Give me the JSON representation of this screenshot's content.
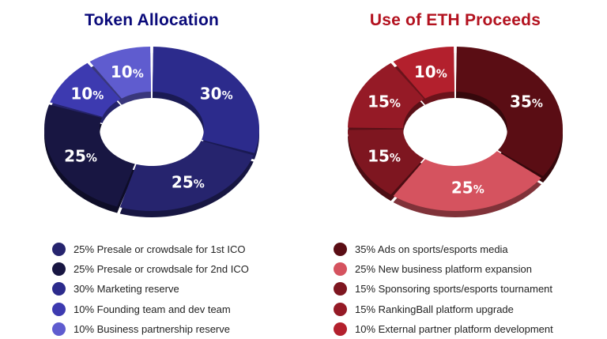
{
  "chart_data": [
    {
      "type": "pie",
      "title": "Token Allocation",
      "title_color": "#0a0a7a",
      "slices": [
        {
          "value": 30,
          "label": "30%",
          "legend": "30% Marketing reserve",
          "color": "#2c2b8c"
        },
        {
          "value": 25,
          "label": "25%",
          "legend": "25% Presale or crowdsale for 1st ICO",
          "color": "#26246e"
        },
        {
          "value": 25,
          "label": "25%",
          "legend": "25% Presale or crowdsale for 2nd ICO",
          "color": "#181642"
        },
        {
          "value": 10,
          "label": "10%",
          "legend": "10% Founding team and dev team",
          "color": "#3d3ab0"
        },
        {
          "value": 10,
          "label": "10%",
          "legend": "10% Business partnership reserve",
          "color": "#5f5ccf"
        }
      ],
      "legend_order": [
        1,
        2,
        0,
        3,
        4
      ]
    },
    {
      "type": "pie",
      "title": "Use of ETH Proceeds",
      "title_color": "#b3121f",
      "slices": [
        {
          "value": 35,
          "label": "35%",
          "legend": "35% Ads on sports/esports media",
          "color": "#5a0d14"
        },
        {
          "value": 25,
          "label": "25%",
          "legend": "25% New business platform expansion",
          "color": "#d5535f"
        },
        {
          "value": 15,
          "label": "15%",
          "legend": "15% Sponsoring sports/esports tournament",
          "color": "#7e1620"
        },
        {
          "value": 15,
          "label": "15%",
          "legend": "15% RankingBall platform upgrade",
          "color": "#951a26"
        },
        {
          "value": 10,
          "label": "10%",
          "legend": "10% External partner platform development",
          "color": "#b3202d"
        }
      ],
      "legend_order": [
        0,
        1,
        2,
        3,
        4
      ]
    }
  ]
}
